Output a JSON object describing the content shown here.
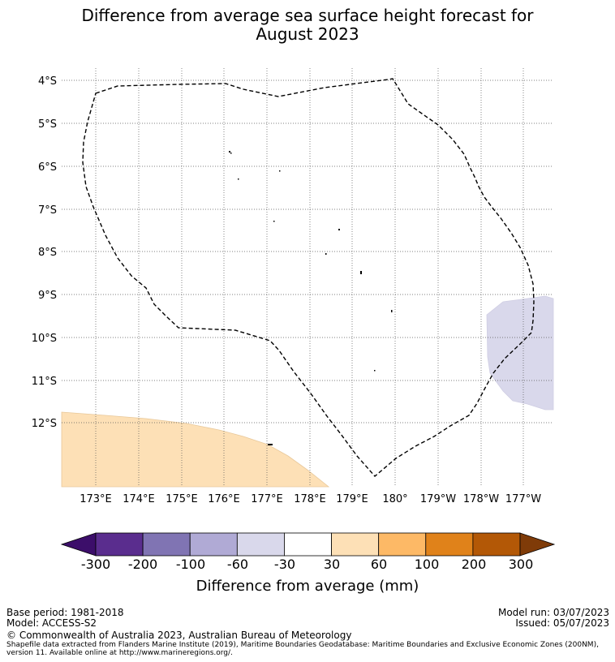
{
  "title_line1": "Difference from average sea surface height forecast for",
  "title_line2": "August 2023",
  "lat_ticks": [
    "4°S",
    "5°S",
    "6°S",
    "7°S",
    "8°S",
    "9°S",
    "10°S",
    "11°S",
    "12°S"
  ],
  "lon_ticks": [
    "173°E",
    "174°E",
    "175°E",
    "176°E",
    "177°E",
    "178°E",
    "179°E",
    "180°",
    "179°W",
    "178°W",
    "177°W"
  ],
  "colorbar": {
    "labels": [
      "-300",
      "-200",
      "-100",
      "-60",
      "-30",
      "30",
      "60",
      "100",
      "200",
      "300"
    ],
    "colors": [
      "#3c0e6a",
      "#5a2d8e",
      "#8074b3",
      "#b0aad5",
      "#d9d8eb",
      "#ffffff",
      "#fde0b6",
      "#fdb966",
      "#e0821a",
      "#b35806",
      "#7f3b08"
    ],
    "title": "Difference from average (mm)"
  },
  "footer": {
    "base_period": "Base period: 1981-2018",
    "model": "Model: ACCESS-S2",
    "model_run": "Model run: 03/07/2023",
    "issued": "Issued: 05/07/2023",
    "copyright": "© Commonwealth of Australia 2023, Australian Bureau of Meteorology",
    "shapefile_1": "Shapefile data extracted from Flanders Marine Institute (2019), Maritime Boundaries Geodatabase: Maritime Boundaries and Exclusive Economic Zones (200NM),",
    "shapefile_2": "version 11. Available online at http://www.marineregions.org/."
  }
}
